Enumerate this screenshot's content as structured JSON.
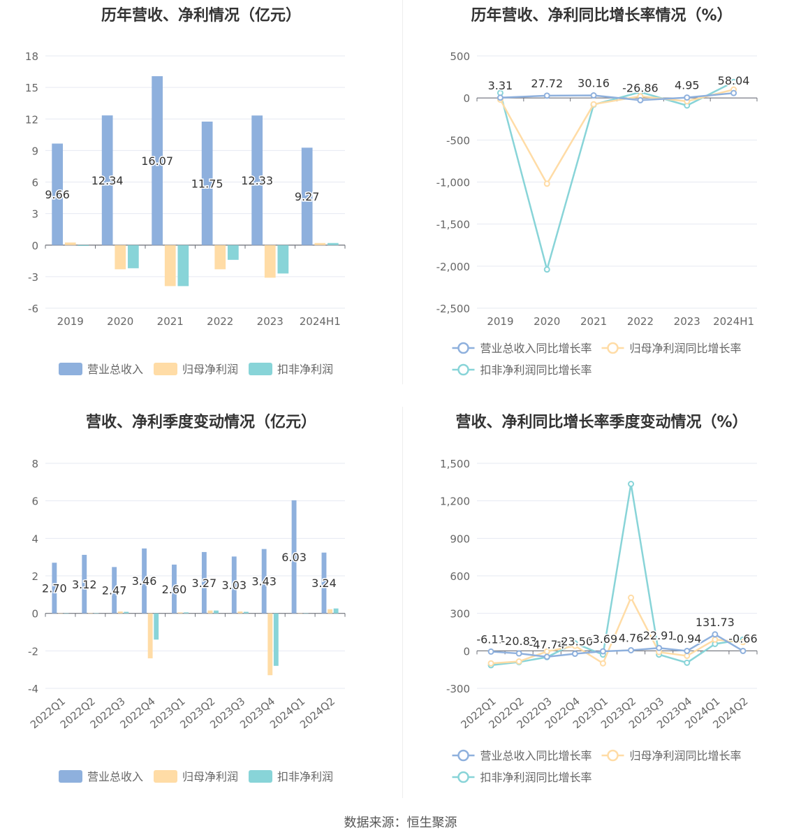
{
  "footer": {
    "source": "数据来源：恒生聚源"
  },
  "colors": {
    "revenue": "#8eb0dd",
    "net_profit": "#ffdca6",
    "deducted_net_profit": "#88d4d8"
  },
  "chart_data": [
    {
      "type": "bar",
      "title": "历年营收、净利情况（亿元）",
      "categories": [
        "2019",
        "2020",
        "2021",
        "2022",
        "2023",
        "2024H1"
      ],
      "ylim": [
        -6,
        18
      ],
      "yticks": [
        -6,
        -3,
        0,
        3,
        6,
        9,
        12,
        15,
        18
      ],
      "grid": true,
      "legend_position": "bottom",
      "series": [
        {
          "name": "营业总收入",
          "values": [
            9.66,
            12.34,
            16.07,
            11.75,
            12.33,
            9.27
          ],
          "show_labels": true
        },
        {
          "name": "归母净利润",
          "values": [
            0.25,
            -2.3,
            -3.9,
            -2.3,
            -3.1,
            0.2
          ]
        },
        {
          "name": "扣非净利润",
          "values": [
            -0.08,
            -2.2,
            -3.9,
            -1.4,
            -2.7,
            0.2
          ]
        }
      ]
    },
    {
      "type": "line",
      "title": "历年营收、净利同比增长率情况（%）",
      "categories": [
        "2019",
        "2020",
        "2021",
        "2022",
        "2023",
        "2024H1"
      ],
      "ylim": [
        -2500,
        500
      ],
      "yticks": [
        -2500,
        -2000,
        -1500,
        -1000,
        -500,
        0,
        500
      ],
      "ytick_labels": [
        "-2,500",
        "-2,000",
        "-1,500",
        "-1,000",
        "-500",
        "0",
        "500"
      ],
      "grid": true,
      "legend_position": "bottom",
      "series": [
        {
          "name": "营业总收入同比增长率",
          "values": [
            3.31,
            27.72,
            30.16,
            -26.86,
            4.95,
            58.04
          ],
          "show_labels": true
        },
        {
          "name": "归母净利润同比增长率",
          "values": [
            -20,
            -1020,
            -75,
            20,
            -40,
            100
          ]
        },
        {
          "name": "扣非净利润同比增长率",
          "values": [
            60,
            -2040,
            -80,
            70,
            -90,
            190
          ]
        }
      ]
    },
    {
      "type": "bar",
      "title": "营收、净利季度变动情况（亿元）",
      "categories": [
        "2022Q1",
        "2022Q2",
        "2022Q3",
        "2022Q4",
        "2023Q1",
        "2023Q2",
        "2023Q3",
        "2023Q4",
        "2024Q1",
        "2024Q2"
      ],
      "ylim": [
        -4,
        8
      ],
      "yticks": [
        -4,
        -2,
        0,
        2,
        4,
        6,
        8
      ],
      "grid": true,
      "legend_position": "bottom",
      "series": [
        {
          "name": "营业总收入",
          "values": [
            2.7,
            3.12,
            2.47,
            3.46,
            2.6,
            3.27,
            3.03,
            3.43,
            6.03,
            3.24
          ],
          "show_labels": true
        },
        {
          "name": "归母净利润",
          "values": [
            -0.02,
            0.02,
            0.1,
            -2.4,
            0.05,
            0.15,
            0.1,
            -3.3,
            0.0,
            0.22
          ]
        },
        {
          "name": "扣非净利润",
          "values": [
            -0.02,
            0.01,
            0.08,
            -1.4,
            0.05,
            0.15,
            0.08,
            -2.8,
            0.0,
            0.26
          ]
        }
      ]
    },
    {
      "type": "line",
      "title": "营收、净利同比增长率季度变动情况（%）",
      "categories": [
        "2022Q1",
        "2022Q2",
        "2022Q3",
        "2022Q4",
        "2023Q1",
        "2023Q2",
        "2023Q3",
        "2023Q4",
        "2024Q1",
        "2024Q2"
      ],
      "ylim": [
        -300,
        1500
      ],
      "yticks": [
        -300,
        0,
        300,
        600,
        900,
        1200,
        1500
      ],
      "ytick_labels": [
        "-300",
        "0",
        "300",
        "600",
        "900",
        "1,200",
        "1,500"
      ],
      "grid": true,
      "legend_position": "bottom",
      "series": [
        {
          "name": "营业总收入同比增长率",
          "values": [
            -6.11,
            -20.83,
            -47.74,
            -23.5,
            -3.69,
            4.76,
            22.91,
            -0.94,
            131.73,
            -0.66
          ],
          "show_labels": true,
          "labels": [
            "-6.11",
            "-20.83",
            "-47.74",
            "-23.50",
            "-3.69",
            "4.76",
            "22.91",
            "-0.94",
            "131.73",
            "-0.66"
          ]
        },
        {
          "name": "归母净利润同比增长率",
          "values": [
            -100,
            -85,
            -5,
            40,
            -100,
            425,
            -10,
            -40,
            90,
            70
          ]
        },
        {
          "name": "扣非净利润同比增长率",
          "values": [
            -115,
            -90,
            -50,
            60,
            -30,
            1335,
            -30,
            -95,
            55,
            90
          ]
        }
      ]
    }
  ]
}
